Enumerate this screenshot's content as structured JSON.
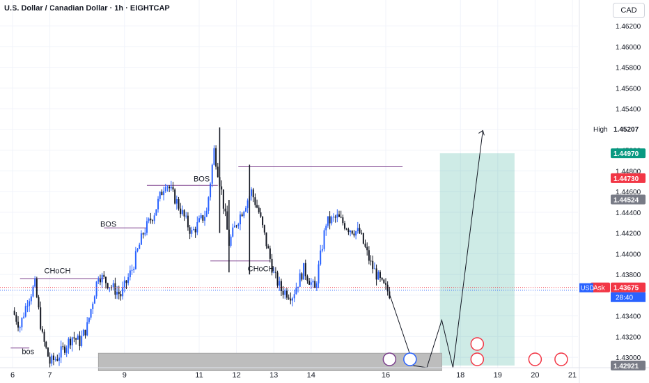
{
  "header": {
    "title": "U.S. Dollar / Canadian Dollar · 1h · EIGHTCAP",
    "currency": "CAD"
  },
  "chart_data": {
    "type": "candlestick",
    "ylim": [
      1.429,
      1.4645
    ],
    "xlim": [
      5.9,
      21.4
    ],
    "y_ticks": [
      "1.46200",
      "1.46000",
      "1.45800",
      "1.45600",
      "1.45400",
      "1.45200",
      "1.45000",
      "1.44800",
      "1.44600",
      "1.44400",
      "1.44200",
      "1.44000",
      "1.43800",
      "1.43600",
      "1.43400",
      "1.43200",
      "1.43000"
    ],
    "x_ticks": [
      {
        "x": 6,
        "label": "6"
      },
      {
        "x": 7,
        "label": "7"
      },
      {
        "x": 9,
        "label": "9"
      },
      {
        "x": 11,
        "label": "11"
      },
      {
        "x": 12,
        "label": "12"
      },
      {
        "x": 13,
        "label": "13"
      },
      {
        "x": 14,
        "label": "14"
      },
      {
        "x": 16,
        "label": "16"
      },
      {
        "x": 18,
        "label": "18"
      },
      {
        "x": 19,
        "label": "19"
      },
      {
        "x": 20,
        "label": "20"
      },
      {
        "x": 21,
        "label": "21"
      }
    ],
    "price_labels": {
      "high": {
        "tag": "High",
        "value": "1.45207"
      },
      "target": {
        "value": "1.44970"
      },
      "bid": {
        "value": "1.44730"
      },
      "level": {
        "value": "1.44524"
      },
      "ask": {
        "tag": "Ask",
        "currency": "USD",
        "value": "1.43675",
        "countdown": "28:40"
      },
      "bottom": {
        "value": "1.42921"
      }
    },
    "annotations": [
      {
        "text": "bos",
        "x": 6.25,
        "y": 1.4303
      },
      {
        "text": "CHoCH",
        "x": 6.85,
        "y": 1.4381
      },
      {
        "text": "BOS",
        "x": 8.35,
        "y": 1.4426
      },
      {
        "text": "BOS",
        "x": 10.85,
        "y": 1.447
      },
      {
        "text": "CHoCH",
        "x": 12.3,
        "y": 1.4383
      }
    ],
    "structure_lines": [
      {
        "x1": 5.95,
        "x2": 6.45,
        "y": 1.4309
      },
      {
        "x1": 6.2,
        "x2": 8.45,
        "y": 1.4376
      },
      {
        "x1": 8.45,
        "x2": 9.6,
        "y": 1.4425
      },
      {
        "x1": 9.6,
        "x2": 11.5,
        "y": 1.4466
      },
      {
        "x1": 11.3,
        "x2": 12.9,
        "y": 1.4393
      },
      {
        "x1": 12.05,
        "x2": 16.45,
        "y": 1.4484
      }
    ],
    "target_zone": {
      "x1": 17.45,
      "x2": 19.45,
      "y1": 1.42921,
      "y2": 1.4497
    },
    "demand_zone": {
      "x1": 8.3,
      "x2": 17.5,
      "y1": 1.4287,
      "y2": 1.4304
    },
    "projection": [
      {
        "x": 16.1,
        "y": 1.4361
      },
      {
        "x": 16.75,
        "y": 1.4292
      },
      {
        "x": 17.1,
        "y": 1.429
      },
      {
        "x": 17.5,
        "y": 1.4336
      },
      {
        "x": 17.8,
        "y": 1.429
      },
      {
        "x": 18.6,
        "y": 1.4519
      }
    ],
    "series": [
      {
        "name": "close",
        "x": [
          6.0,
          6.2,
          6.4,
          6.6,
          6.8,
          7.0,
          7.2,
          7.4,
          7.6,
          7.8,
          8.0,
          8.3,
          8.6,
          8.9,
          9.2,
          9.5,
          9.8,
          10.1,
          10.4,
          10.6,
          10.8,
          11.0,
          11.2,
          11.4,
          11.6,
          11.8,
          12.0,
          12.2,
          12.4,
          12.6,
          12.8,
          13.0,
          13.2,
          13.5,
          13.8,
          14.1,
          14.4,
          14.7,
          15.0,
          15.3,
          15.6,
          15.9,
          16.1
        ],
        "y": [
          1.4345,
          1.433,
          1.4355,
          1.437,
          1.432,
          1.4295,
          1.43,
          1.431,
          1.432,
          1.4315,
          1.433,
          1.438,
          1.437,
          1.436,
          1.4385,
          1.442,
          1.444,
          1.447,
          1.445,
          1.4435,
          1.442,
          1.443,
          1.444,
          1.45,
          1.446,
          1.441,
          1.443,
          1.4445,
          1.446,
          1.444,
          1.441,
          1.438,
          1.4365,
          1.436,
          1.4385,
          1.4365,
          1.443,
          1.4435,
          1.4425,
          1.442,
          1.439,
          1.437,
          1.4362
        ]
      }
    ],
    "grid": true,
    "legend": "none"
  }
}
